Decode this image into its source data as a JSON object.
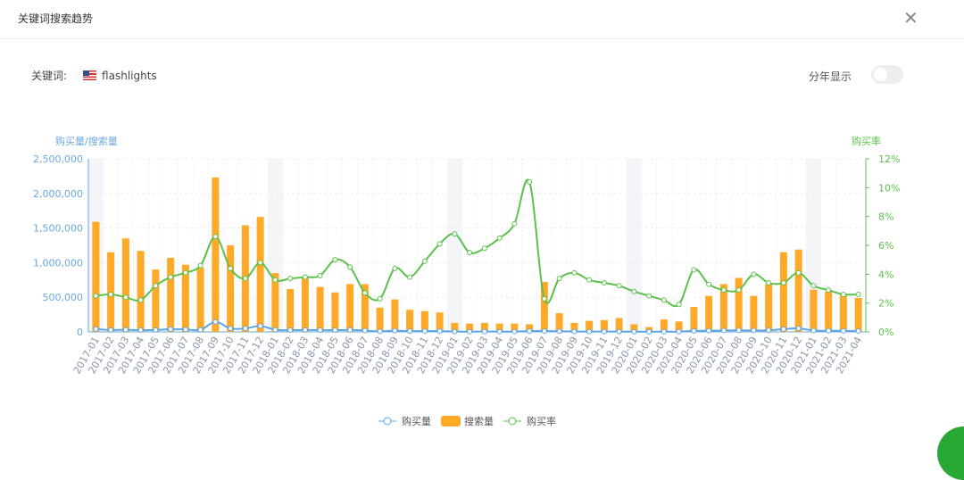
{
  "header": {
    "title": "关键词搜索趋势",
    "close_icon": "close-icon"
  },
  "keyword": {
    "label": "关键词:",
    "flag": "us-flag-icon",
    "value": "flashlights"
  },
  "year_toggle": {
    "label": "分年显示",
    "on": false
  },
  "colors": {
    "purchase": "#5aa6e8",
    "search": "#ffa928",
    "rate": "#5cc14b",
    "axis_left": "#6aa8e0",
    "axis_right": "#5cc14b"
  },
  "chart_data": {
    "type": "bar",
    "ylabel": "购买量/搜索量",
    "y2label": "购买率",
    "ylim": [
      0,
      2500000
    ],
    "y2lim": [
      0,
      12
    ],
    "yticks": [
      "0",
      "500,000",
      "1,000,000",
      "1,500,000",
      "2,000,000",
      "2,500,000"
    ],
    "y2ticks": [
      "0%",
      "2%",
      "4%",
      "6%",
      "8%",
      "10%",
      "12%"
    ],
    "legend": [
      "购买量",
      "搜索量",
      "购买率"
    ],
    "legend_position": "bottom",
    "categories": [
      "2017-01",
      "2017-02",
      "2017-03",
      "2017-04",
      "2017-05",
      "2017-06",
      "2017-07",
      "2017-08",
      "2017-09",
      "2017-10",
      "2017-11",
      "2017-12",
      "2018-01",
      "2018-02",
      "2018-03",
      "2018-04",
      "2018-05",
      "2018-06",
      "2018-07",
      "2018-08",
      "2018-09",
      "2018-10",
      "2018-11",
      "2018-12",
      "2019-01",
      "2019-02",
      "2019-03",
      "2019-04",
      "2019-05",
      "2019-06",
      "2019-07",
      "2019-08",
      "2019-09",
      "2019-10",
      "2019-11",
      "2019-12",
      "2020-01",
      "2020-02",
      "2020-03",
      "2020-04",
      "2020-05",
      "2020-06",
      "2020-07",
      "2020-08",
      "2020-09",
      "2020-10",
      "2020-11",
      "2020-12",
      "2021-01",
      "2021-02",
      "2021-03",
      "2021-04"
    ],
    "series": [
      {
        "name": "购买量",
        "type": "line",
        "axis": "left",
        "values": [
          40000,
          28000,
          30000,
          25000,
          28000,
          38000,
          35000,
          30000,
          145000,
          50000,
          50000,
          85000,
          30000,
          25000,
          28000,
          25000,
          25000,
          28000,
          20000,
          8000,
          18000,
          12000,
          12000,
          12000,
          5000,
          4000,
          5000,
          4000,
          4000,
          12000,
          12000,
          10000,
          5000,
          5000,
          5000,
          5000,
          3000,
          2000,
          3000,
          3000,
          15000,
          17000,
          20000,
          22000,
          21000,
          23000,
          40000,
          50000,
          20000,
          17000,
          15000,
          13000
        ]
      },
      {
        "name": "搜索量",
        "type": "bar",
        "axis": "left",
        "values": [
          1590000,
          1150000,
          1350000,
          1170000,
          900000,
          1070000,
          970000,
          930000,
          2230000,
          1250000,
          1540000,
          1660000,
          850000,
          620000,
          800000,
          650000,
          570000,
          690000,
          690000,
          350000,
          470000,
          320000,
          300000,
          280000,
          130000,
          120000,
          130000,
          120000,
          120000,
          110000,
          720000,
          270000,
          130000,
          160000,
          170000,
          200000,
          110000,
          70000,
          180000,
          150000,
          360000,
          520000,
          690000,
          780000,
          520000,
          690000,
          1150000,
          1190000,
          610000,
          580000,
          540000,
          490000
        ]
      },
      {
        "name": "购买率",
        "type": "line",
        "axis": "right",
        "unit": "%",
        "values": [
          2.5,
          2.6,
          2.4,
          2.2,
          3.2,
          3.8,
          4.1,
          4.6,
          6.6,
          4.4,
          3.7,
          4.8,
          3.6,
          3.7,
          3.8,
          3.9,
          5.0,
          4.5,
          2.7,
          2.3,
          4.4,
          3.8,
          4.9,
          6.1,
          6.8,
          5.5,
          5.8,
          6.5,
          7.5,
          10.4,
          2.3,
          3.7,
          4.1,
          3.6,
          3.4,
          3.2,
          2.8,
          2.5,
          2.2,
          1.9,
          4.3,
          3.3,
          2.9,
          2.9,
          4.0,
          3.4,
          3.4,
          4.1,
          3.2,
          2.9,
          2.6,
          2.6
        ]
      }
    ]
  }
}
